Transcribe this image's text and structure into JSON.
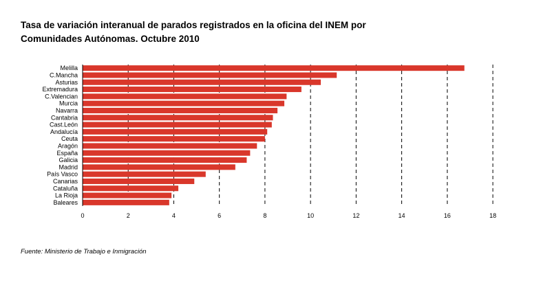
{
  "title_line1": "Tasa de variación interanual de parados registrados en la oficina del INEM por",
  "title_line2": "Comunidades Autónomas. Octubre 2010",
  "source": "Fuente: Ministerio de Trabajo e Inmigración",
  "chart_data": {
    "type": "bar",
    "orientation": "horizontal",
    "title": "Tasa de variación interanual de parados registrados en la oficina del INEM por Comunidades Autónomas. Octubre 2010",
    "xlabel": "",
    "ylabel": "",
    "xlim": [
      0,
      18
    ],
    "xticks": [
      0,
      2,
      4,
      6,
      8,
      10,
      12,
      14,
      16,
      18
    ],
    "grid": "vertical dashed",
    "bar_color": "#d9372b",
    "categories": [
      "Melilla",
      "C.Mancha",
      "Asturias",
      "Extremadura",
      "C.Valencian",
      "Murcia",
      "Navarra",
      "Cantabria",
      "Cast.León",
      "Andalucía",
      "Ceuta",
      "Aragón",
      "España",
      "Galicia",
      "Madrid",
      "País Vasco",
      "Canarias",
      "Cataluña",
      "La Rioja",
      "Baleares"
    ],
    "values": [
      16.75,
      11.15,
      10.45,
      9.6,
      8.95,
      8.85,
      8.55,
      8.35,
      8.3,
      8.1,
      8.0,
      7.65,
      7.35,
      7.2,
      6.7,
      5.4,
      4.9,
      4.2,
      3.9,
      3.8
    ]
  }
}
